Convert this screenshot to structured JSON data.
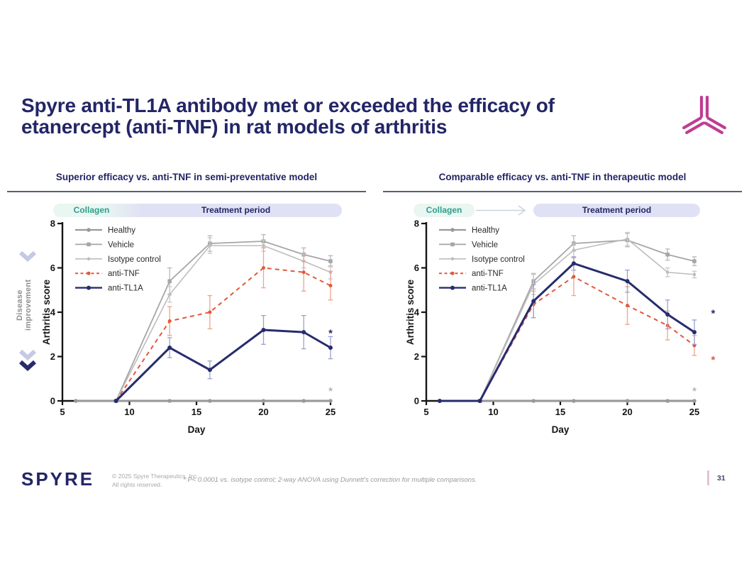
{
  "slide": {
    "title_line1": "Spyre anti-TL1A antibody met or exceeded the efficacy of",
    "title_line2": "etanercept (anti-TNF) in rat models of arthritis",
    "side_label": "Disease improvement",
    "page_number": "31",
    "footer": {
      "brand": "SPYRE",
      "copyright_line1": "© 2025 Spyre Therapeutics, Inc.",
      "copyright_line2": "All rights reserved.",
      "footnote": "* P< 0.0001 vs. isotype control; 2-way ANOVA using Dunnett's correction for multiple comparisons."
    },
    "colors": {
      "accent_navy": "#232566",
      "accent_magenta": "#bf3d92",
      "accent_teal": "#2f9e8d",
      "banner_mint": "#e9f6f1",
      "banner_lavender": "#e0e1f4",
      "chevron_light": "#c5c9e6",
      "chevron_dark": "#272c6d"
    }
  },
  "chart_data": [
    {
      "type": "line",
      "title": "Superior efficacy vs. anti-TNF in semi-preventative model",
      "banner": {
        "style": "joined",
        "collagen": "Collagen",
        "treatment": "Treatment period"
      },
      "xlabel": "Day",
      "ylabel": "Arthritis score",
      "xlim": [
        5,
        25
      ],
      "xticks": [
        5,
        10,
        15,
        20,
        25
      ],
      "ylim": [
        0,
        8
      ],
      "yticks": [
        0,
        2,
        4,
        6,
        8
      ],
      "grid": false,
      "legend_position": "top-left",
      "series": [
        {
          "name": "Healthy",
          "color": "#999999",
          "err_color": "#b5b5b5",
          "marker": "circle",
          "marker_size": 5.5,
          "line_width": 2.2,
          "dash": null,
          "x": [
            6,
            9,
            13,
            16,
            20,
            23,
            25
          ],
          "y": [
            0,
            0,
            0,
            0,
            0,
            0,
            0
          ],
          "err": [
            0,
            0,
            0,
            0,
            0,
            0,
            0
          ]
        },
        {
          "name": "Vehicle",
          "color": "#a6a6a6",
          "err_color": "#b8b8b8",
          "marker": "square",
          "marker_size": 5.5,
          "line_width": 1.8,
          "dash": null,
          "x": [
            9,
            13,
            16,
            20,
            23,
            25
          ],
          "y": [
            0,
            5.4,
            7.1,
            7.2,
            6.6,
            6.3
          ],
          "err": [
            0,
            0.6,
            0.35,
            0.3,
            0.3,
            0.25
          ]
        },
        {
          "name": "Isotype control",
          "color": "#bdbdbd",
          "err_color": "#c8c8c8",
          "marker": "circle",
          "marker_size": 4.5,
          "line_width": 1.6,
          "dash": null,
          "x": [
            9,
            13,
            16,
            20,
            23,
            25
          ],
          "y": [
            0,
            4.8,
            7.0,
            7.0,
            6.3,
            5.8
          ],
          "err": [
            0,
            0.35,
            0.35,
            0.25,
            0.3,
            0.3
          ]
        },
        {
          "name": "anti-TNF",
          "color": "#e0593b",
          "err_color": "#f1a28c",
          "marker": "circle",
          "marker_size": 5,
          "line_width": 2,
          "dash": "6,5",
          "x": [
            9,
            13,
            16,
            20,
            23,
            25
          ],
          "y": [
            0,
            3.6,
            4.0,
            6.0,
            5.8,
            5.2
          ],
          "err": [
            0,
            0.65,
            0.75,
            0.9,
            0.85,
            0.65
          ]
        },
        {
          "name": "anti-TL1A",
          "color": "#272c6d",
          "err_color": "#9aa2cb",
          "marker": "circle",
          "marker_size": 6,
          "line_width": 3,
          "dash": null,
          "x": [
            9,
            13,
            16,
            20,
            23,
            25
          ],
          "y": [
            0,
            2.4,
            1.4,
            3.2,
            3.1,
            2.4
          ],
          "err": [
            0,
            0.45,
            0.4,
            0.65,
            0.75,
            0.5
          ]
        }
      ],
      "draw_order": [
        1,
        2,
        3,
        0,
        4
      ],
      "annotations": [
        {
          "text": "*",
          "x": 25,
          "y": 3.05,
          "color": "#272c6d"
        },
        {
          "text": "*",
          "x": 25,
          "y": 0.45,
          "color": "#b5b5b5"
        }
      ]
    },
    {
      "type": "line",
      "title": "Comparable efficacy vs. anti-TNF in therapeutic model",
      "banner": {
        "style": "arrow",
        "collagen": "Collagen",
        "treatment": "Treatment period"
      },
      "xlabel": "Day",
      "ylabel": "Arthritis score",
      "xlim": [
        5,
        25
      ],
      "xticks": [
        5,
        10,
        15,
        20,
        25
      ],
      "ylim": [
        0,
        8
      ],
      "yticks": [
        0,
        2,
        4,
        6,
        8
      ],
      "grid": false,
      "legend_position": "top-left",
      "series": [
        {
          "name": "Healthy",
          "color": "#999999",
          "err_color": "#b5b5b5",
          "marker": "circle",
          "marker_size": 5.5,
          "line_width": 2.2,
          "dash": null,
          "x": [
            6,
            9,
            13,
            16,
            20,
            23,
            25
          ],
          "y": [
            0,
            0,
            0,
            0,
            0,
            0,
            0
          ],
          "err": [
            0,
            0,
            0,
            0,
            0,
            0,
            0
          ]
        },
        {
          "name": "Vehicle",
          "color": "#a6a6a6",
          "err_color": "#b8b8b8",
          "marker": "square",
          "marker_size": 5.5,
          "line_width": 1.8,
          "dash": null,
          "x": [
            9,
            13,
            16,
            20,
            23,
            25
          ],
          "y": [
            0,
            5.4,
            7.1,
            7.25,
            6.6,
            6.3
          ],
          "err": [
            0,
            0.35,
            0.35,
            0.3,
            0.25,
            0.2
          ]
        },
        {
          "name": "Isotype control",
          "color": "#bdbdbd",
          "err_color": "#c8c8c8",
          "marker": "circle",
          "marker_size": 4.5,
          "line_width": 1.6,
          "dash": null,
          "x": [
            9,
            13,
            16,
            20,
            23,
            25
          ],
          "y": [
            0,
            5.25,
            6.8,
            7.3,
            5.8,
            5.7
          ],
          "err": [
            0,
            0.45,
            0.3,
            0.3,
            0.2,
            0.15
          ]
        },
        {
          "name": "anti-TNF",
          "color": "#e0593b",
          "err_color": "#f1a28c",
          "marker": "circle",
          "marker_size": 5,
          "line_width": 2,
          "dash": "6,5",
          "x": [
            9,
            13,
            16,
            20,
            23,
            25
          ],
          "y": [
            0,
            4.35,
            5.6,
            4.3,
            3.4,
            2.5
          ],
          "err": [
            0,
            0.6,
            0.85,
            0.85,
            0.65,
            0.45
          ]
        },
        {
          "name": "anti-TL1A",
          "color": "#272c6d",
          "err_color": "#9aa2cb",
          "marker": "circle",
          "marker_size": 6,
          "line_width": 3,
          "dash": null,
          "x": [
            6,
            9,
            13,
            16,
            20,
            23,
            25
          ],
          "y": [
            0,
            0,
            4.5,
            6.2,
            5.4,
            3.9,
            3.1
          ],
          "err": [
            0,
            0,
            0.75,
            0.3,
            0.5,
            0.65,
            0.55
          ]
        }
      ],
      "draw_order": [
        1,
        2,
        3,
        0,
        4
      ],
      "annotations": [
        {
          "text": "*",
          "x": 26.4,
          "y": 3.95,
          "color": "#272c6d"
        },
        {
          "text": "*",
          "x": 26.4,
          "y": 1.85,
          "color": "#e0593b"
        },
        {
          "text": "*",
          "x": 25,
          "y": 0.45,
          "color": "#b5b5b5"
        }
      ]
    }
  ]
}
